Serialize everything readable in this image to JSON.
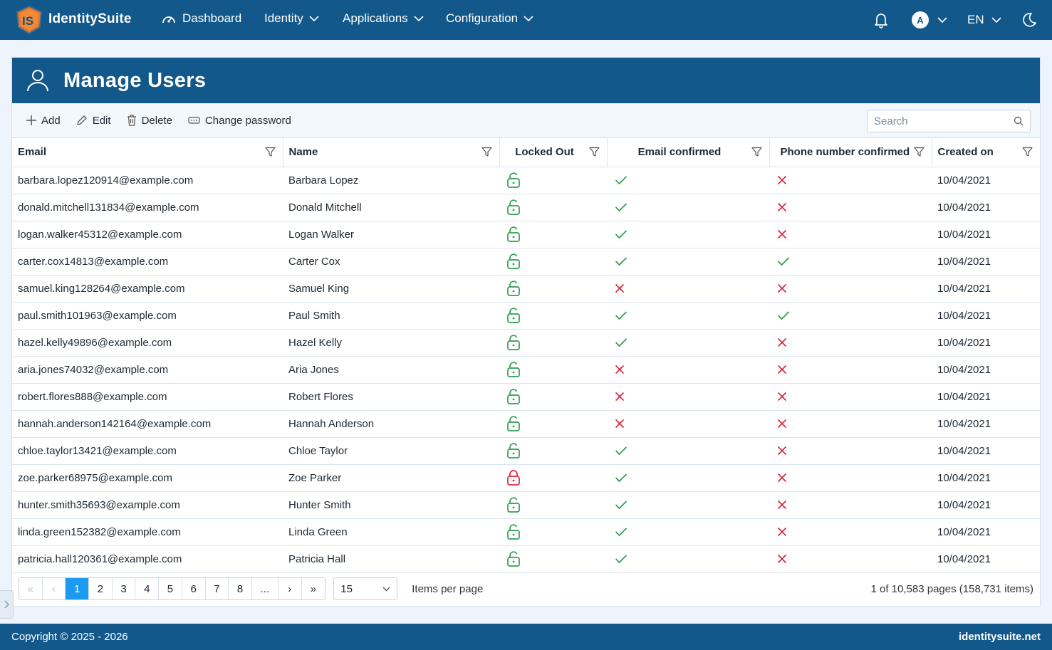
{
  "nav": {
    "brand": "IdentitySuite",
    "items": [
      {
        "label": "Dashboard",
        "icon": "gauge-icon"
      },
      {
        "label": "Identity",
        "dropdown": true
      },
      {
        "label": "Applications",
        "dropdown": true
      },
      {
        "label": "Configuration",
        "dropdown": true
      }
    ],
    "avatar_letter": "A",
    "language": "EN"
  },
  "page": {
    "title": "Manage Users"
  },
  "toolbar": {
    "add": "Add",
    "edit": "Edit",
    "delete": "Delete",
    "change_password": "Change password",
    "search_placeholder": "Search"
  },
  "table": {
    "columns": [
      "Email",
      "Name",
      "Locked Out",
      "Email confirmed",
      "Phone number confirmed",
      "Created on"
    ],
    "rows": [
      {
        "email": "barbara.lopez120914@example.com",
        "name": "Barbara Lopez",
        "locked": false,
        "email_confirmed": true,
        "phone_confirmed": false,
        "created": "10/04/2021"
      },
      {
        "email": "donald.mitchell131834@example.com",
        "name": "Donald Mitchell",
        "locked": false,
        "email_confirmed": true,
        "phone_confirmed": false,
        "created": "10/04/2021"
      },
      {
        "email": "logan.walker45312@example.com",
        "name": "Logan Walker",
        "locked": false,
        "email_confirmed": true,
        "phone_confirmed": false,
        "created": "10/04/2021"
      },
      {
        "email": "carter.cox14813@example.com",
        "name": "Carter Cox",
        "locked": false,
        "email_confirmed": true,
        "phone_confirmed": true,
        "created": "10/04/2021"
      },
      {
        "email": "samuel.king128264@example.com",
        "name": "Samuel King",
        "locked": false,
        "email_confirmed": false,
        "phone_confirmed": false,
        "created": "10/04/2021"
      },
      {
        "email": "paul.smith101963@example.com",
        "name": "Paul Smith",
        "locked": false,
        "email_confirmed": true,
        "phone_confirmed": true,
        "created": "10/04/2021"
      },
      {
        "email": "hazel.kelly49896@example.com",
        "name": "Hazel Kelly",
        "locked": false,
        "email_confirmed": true,
        "phone_confirmed": false,
        "created": "10/04/2021"
      },
      {
        "email": "aria.jones74032@example.com",
        "name": "Aria Jones",
        "locked": false,
        "email_confirmed": false,
        "phone_confirmed": false,
        "created": "10/04/2021"
      },
      {
        "email": "robert.flores888@example.com",
        "name": "Robert Flores",
        "locked": false,
        "email_confirmed": false,
        "phone_confirmed": false,
        "created": "10/04/2021"
      },
      {
        "email": "hannah.anderson142164@example.com",
        "name": "Hannah Anderson",
        "locked": false,
        "email_confirmed": false,
        "phone_confirmed": false,
        "created": "10/04/2021"
      },
      {
        "email": "chloe.taylor13421@example.com",
        "name": "Chloe Taylor",
        "locked": false,
        "email_confirmed": true,
        "phone_confirmed": false,
        "created": "10/04/2021"
      },
      {
        "email": "zoe.parker68975@example.com",
        "name": "Zoe Parker",
        "locked": true,
        "email_confirmed": true,
        "phone_confirmed": false,
        "created": "10/04/2021"
      },
      {
        "email": "hunter.smith35693@example.com",
        "name": "Hunter Smith",
        "locked": false,
        "email_confirmed": true,
        "phone_confirmed": false,
        "created": "10/04/2021"
      },
      {
        "email": "linda.green152382@example.com",
        "name": "Linda Green",
        "locked": false,
        "email_confirmed": true,
        "phone_confirmed": false,
        "created": "10/04/2021"
      },
      {
        "email": "patricia.hall120361@example.com",
        "name": "Patricia Hall",
        "locked": false,
        "email_confirmed": true,
        "phone_confirmed": false,
        "created": "10/04/2021"
      }
    ]
  },
  "pager": {
    "first": "«",
    "prev": "‹",
    "pages": [
      "1",
      "2",
      "3",
      "4",
      "5",
      "6",
      "7",
      "8",
      "..."
    ],
    "current": "1",
    "next": "›",
    "last": "»",
    "page_size": "15",
    "items_per_page_label": "Items per page",
    "info": "1 of 10,583 pages (158,731 items)"
  },
  "footer": {
    "copyright": "Copyright © 2025 - 2026",
    "site": "identitysuite.net"
  },
  "colors": {
    "brand": "#12588a",
    "ok": "#2e9e4f",
    "bad": "#d9273e",
    "active_page": "#1a9bef"
  }
}
